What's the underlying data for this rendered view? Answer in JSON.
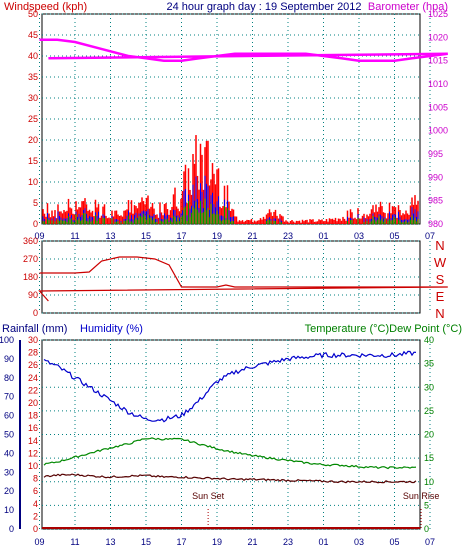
{
  "header": {
    "left_label": "Windspeed (kph)",
    "center_title": "24 hour graph day : 19 September 2012",
    "right_label": "Barometer (hpa)"
  },
  "colors": {
    "wind": "#ff0000",
    "gust_blue": "#0000ff",
    "gust_green": "#009900",
    "baro": "#ff00ff",
    "direction": "#cc0000",
    "humidity": "#0000cc",
    "temperature": "#008800",
    "dewpoint": "#550000",
    "rain": "#aa0000",
    "axis_left": "#cc0000",
    "axis_right_baro": "#cc00cc",
    "axis_rain": "#000080",
    "axis_temp": "#008000",
    "grid": "#008080"
  },
  "x_hours": [
    "11",
    "13",
    "15",
    "17",
    "19",
    "21",
    "23",
    "01",
    "03",
    "05",
    "07",
    "09"
  ],
  "chart_data": [
    {
      "type": "line",
      "title": "24 hour graph day : 19 September 2012",
      "ylabel": "Windspeed (kph)",
      "y2label": "Barometer (hpa)",
      "ylim": [
        0,
        50
      ],
      "y_ticks": [
        0,
        5,
        10,
        15,
        20,
        25,
        30,
        35,
        40,
        45,
        50
      ],
      "y2lim": [
        980,
        1025
      ],
      "y2_ticks": [
        980,
        985,
        990,
        995,
        1000,
        1005,
        1010,
        1015,
        1020,
        1025
      ],
      "x": [
        "11",
        "13",
        "15",
        "17",
        "19",
        "21",
        "23",
        "01",
        "03",
        "05",
        "07",
        "09"
      ],
      "series": [
        {
          "name": "Windspeed",
          "axis": "left",
          "x": [
            9,
            10,
            11,
            12,
            13,
            14,
            15,
            16,
            17,
            18,
            19,
            20,
            21,
            22,
            23,
            0,
            1,
            2,
            3,
            4,
            5,
            6,
            7,
            8,
            9.5
          ],
          "values": [
            5,
            4,
            6,
            5,
            4,
            5,
            6,
            4,
            10,
            20,
            16,
            2,
            1,
            4,
            1,
            1,
            1,
            2,
            4,
            5,
            4,
            6,
            7,
            8,
            10
          ]
        },
        {
          "name": "Barometer",
          "axis": "right",
          "x": [
            9,
            10,
            11,
            12,
            13,
            14,
            15,
            16,
            17,
            18,
            19,
            20,
            21,
            22,
            23,
            0,
            1,
            2,
            3,
            4,
            5,
            6,
            7,
            8,
            9.5
          ],
          "values": [
            1019.5,
            1019.5,
            1019,
            1018,
            1017,
            1016,
            1015.5,
            1015,
            1015,
            1015.5,
            1016,
            1016.5,
            1016.5,
            1016.5,
            1016.5,
            1016.5,
            1016,
            1015.5,
            1015,
            1015,
            1015,
            1015.5,
            1016,
            1016.5,
            1015.5
          ]
        }
      ]
    },
    {
      "type": "line",
      "ylabel_letters": [
        "N",
        "W",
        "S",
        "E",
        "N"
      ],
      "ylim": [
        0,
        360
      ],
      "y_ticks": [
        0,
        90,
        180,
        270,
        360
      ],
      "series": [
        {
          "name": "Wind direction",
          "x": [
            9,
            10,
            11,
            11.8,
            12.5,
            13.5,
            14.5,
            15.5,
            16.3,
            17,
            18,
            19,
            19.5,
            20,
            22,
            0,
            2,
            4,
            6,
            8,
            9,
            9.5
          ],
          "values": [
            200,
            200,
            200,
            205,
            260,
            280,
            280,
            270,
            240,
            130,
            130,
            130,
            140,
            130,
            130,
            130,
            130,
            130,
            130,
            130,
            110,
            60
          ]
        }
      ]
    },
    {
      "type": "line",
      "ylabel_left_1": "Rainfall (mm)",
      "ylabel_left_2": "Humidity (%)",
      "ylabel_right": "Temperature (°C)Dew Point (°C)",
      "humidity_lim": [
        0,
        100
      ],
      "humidity_ticks": [
        0,
        10,
        20,
        30,
        40,
        50,
        60,
        70,
        80,
        90,
        100
      ],
      "rain_lim": [
        0,
        30
      ],
      "rain_ticks": [
        0,
        2,
        4,
        6,
        8,
        10,
        12,
        14,
        16,
        18,
        20,
        22,
        24,
        26,
        28,
        30
      ],
      "temp_lim": [
        0,
        40
      ],
      "temp_ticks": [
        0,
        5,
        10,
        15,
        20,
        25,
        30,
        35,
        40
      ],
      "annotations": [
        {
          "text": "Sun Set",
          "x_hour": 18.5
        },
        {
          "text": "Sun Rise",
          "x_hour": 6.5
        }
      ],
      "series": [
        {
          "name": "Humidity",
          "axis": "humidity",
          "x": [
            9,
            10,
            11,
            12,
            13,
            14,
            15,
            16,
            17,
            18,
            19,
            20,
            21,
            22,
            23,
            0,
            1,
            2,
            3,
            4,
            5,
            6,
            7,
            8,
            9,
            9.5
          ],
          "values": [
            90,
            86,
            80,
            74,
            68,
            62,
            58,
            58,
            60,
            68,
            78,
            83,
            86,
            88,
            90,
            91,
            92,
            92,
            92,
            92,
            92,
            93,
            93,
            93,
            92,
            88
          ]
        },
        {
          "name": "Temperature",
          "axis": "temp",
          "x": [
            9,
            10,
            11,
            12,
            13,
            14,
            15,
            16,
            17,
            18,
            19,
            20,
            21,
            22,
            23,
            0,
            1,
            2,
            3,
            4,
            5,
            6,
            7,
            8,
            9,
            9.5
          ],
          "values": [
            13.5,
            14.2,
            15.2,
            16.2,
            17.2,
            18,
            19.2,
            19,
            19,
            18,
            17,
            16.2,
            15.5,
            15,
            14.5,
            14,
            13.6,
            13.5,
            13.2,
            13,
            13,
            13,
            13,
            13.2,
            13.8,
            15
          ]
        },
        {
          "name": "Dew Point",
          "axis": "temp",
          "x": [
            9,
            10,
            11,
            12,
            13,
            14,
            15,
            16,
            17,
            18,
            19,
            20,
            21,
            22,
            23,
            0,
            1,
            2,
            3,
            4,
            5,
            6,
            7,
            8,
            9,
            9.5
          ],
          "values": [
            11,
            11.4,
            11.5,
            11.2,
            11,
            11.2,
            11.3,
            11,
            11,
            10.8,
            10.7,
            10.5,
            10.5,
            10.4,
            10.3,
            10.2,
            10.1,
            10,
            10,
            10,
            10,
            10,
            10.2,
            10.5,
            10.8,
            11.2
          ]
        },
        {
          "name": "Rainfall",
          "axis": "rain",
          "x": [
            9,
            9.5
          ],
          "values": [
            0,
            0
          ]
        }
      ]
    }
  ]
}
